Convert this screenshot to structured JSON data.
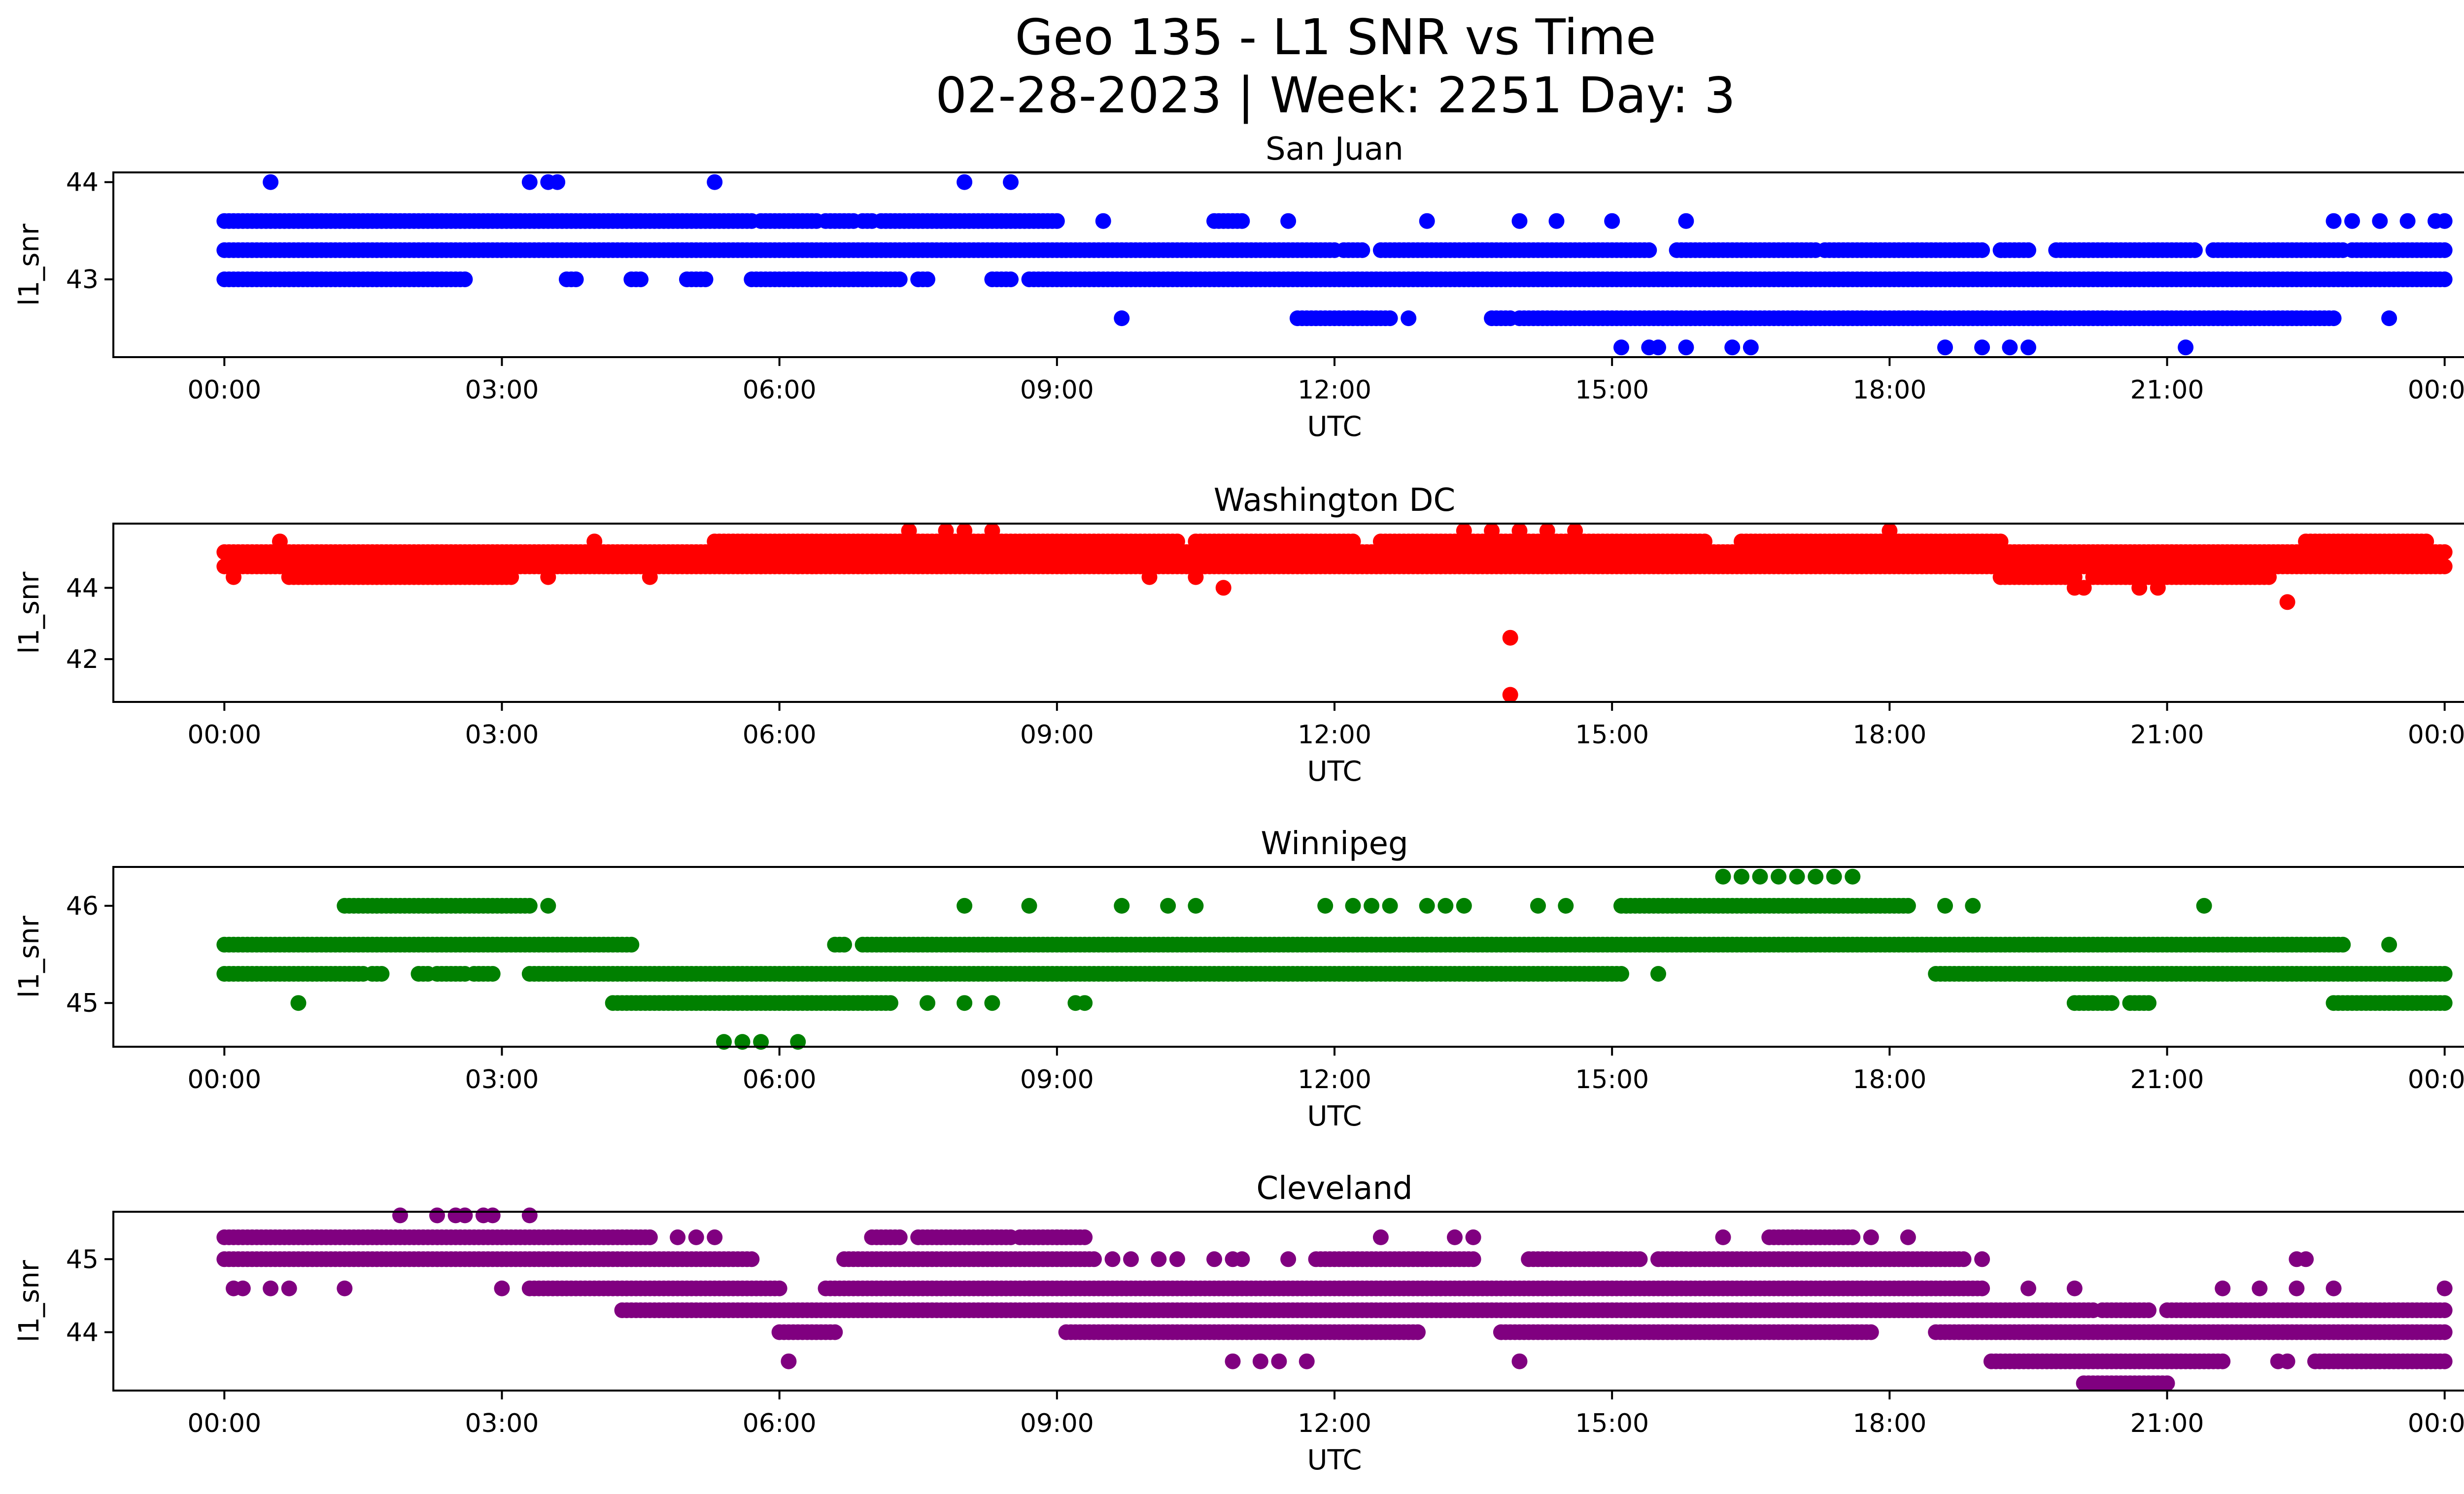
{
  "figure": {
    "title_line1": "Geo 135 - L1 SNR vs Time",
    "title_line2": "02-28-2023 | Week: 2251 Day: 3"
  },
  "chart_data": [
    {
      "type": "scatter",
      "title": "San Juan",
      "xlabel": "UTC",
      "ylabel": "l1_snr",
      "color": "#0000ff",
      "x_ticks": [
        "00:00",
        "03:00",
        "06:00",
        "09:00",
        "12:00",
        "15:00",
        "18:00",
        "21:00",
        "00:00"
      ],
      "xlim_hours": [
        -1.2,
        25.2
      ],
      "y_ticks": [
        43,
        44
      ],
      "ylim": [
        42.2,
        44.1
      ],
      "levels": [
        {
          "y": 43.0,
          "segments": [
            [
              0,
              2.6
            ],
            [
              3.7,
              3.8
            ],
            [
              4.4,
              4.5
            ],
            [
              5.0,
              5.2
            ],
            [
              5.7,
              7.3
            ],
            [
              7.5,
              7.6
            ],
            [
              8.3,
              8.5
            ],
            [
              8.7,
              24.0
            ]
          ]
        },
        {
          "y": 43.3,
          "segments": [
            [
              0,
              12.0
            ],
            [
              12.1,
              12.3
            ],
            [
              12.5,
              15.4
            ],
            [
              15.7,
              17.2
            ],
            [
              17.3,
              19.0
            ],
            [
              19.2,
              19.5
            ],
            [
              19.8,
              21.3
            ],
            [
              21.5,
              22.9
            ],
            [
              23.0,
              24.0
            ]
          ]
        },
        {
          "y": 43.6,
          "segments": [
            [
              0,
              5.7
            ],
            [
              5.8,
              6.4
            ],
            [
              6.5,
              6.8
            ],
            [
              6.9,
              7.0
            ],
            [
              7.1,
              9.0
            ],
            [
              10.7,
              11.0
            ]
          ]
        },
        {
          "y": 42.6,
          "segments": [
            [
              11.6,
              12.6
            ],
            [
              13.7,
              13.9
            ],
            [
              14.0,
              22.8
            ]
          ]
        }
      ],
      "points": [
        [
          0.5,
          44.0
        ],
        [
          3.3,
          44.0
        ],
        [
          3.5,
          44.0
        ],
        [
          3.6,
          44.0
        ],
        [
          5.3,
          44.0
        ],
        [
          8.0,
          44.0
        ],
        [
          8.5,
          44.0
        ],
        [
          9.5,
          43.6
        ],
        [
          11.5,
          43.6
        ],
        [
          13.0,
          43.6
        ],
        [
          14.0,
          43.6
        ],
        [
          14.4,
          43.6
        ],
        [
          15.0,
          43.6
        ],
        [
          15.8,
          43.6
        ],
        [
          22.8,
          43.6
        ],
        [
          23.0,
          43.6
        ],
        [
          23.3,
          43.6
        ],
        [
          23.6,
          43.6
        ],
        [
          23.9,
          43.6
        ],
        [
          24.0,
          43.6
        ],
        [
          9.7,
          42.6
        ],
        [
          12.8,
          42.6
        ],
        [
          23.4,
          42.6
        ],
        [
          15.1,
          42.3
        ],
        [
          15.4,
          42.3
        ],
        [
          15.5,
          42.3
        ],
        [
          15.8,
          42.3
        ],
        [
          16.3,
          42.3
        ],
        [
          16.5,
          42.3
        ],
        [
          18.6,
          42.3
        ],
        [
          19.0,
          42.3
        ],
        [
          19.3,
          42.3
        ],
        [
          19.5,
          42.3
        ],
        [
          21.2,
          42.3
        ],
        [
          22.0,
          43.3
        ]
      ]
    },
    {
      "type": "scatter",
      "title": "Washington DC",
      "xlabel": "UTC",
      "ylabel": "l1_snr",
      "color": "#ff0000",
      "x_ticks": [
        "00:00",
        "03:00",
        "06:00",
        "09:00",
        "12:00",
        "15:00",
        "18:00",
        "21:00",
        "00:00"
      ],
      "xlim_hours": [
        -1.2,
        25.2
      ],
      "y_ticks": [
        42,
        44
      ],
      "ylim": [
        40.8,
        45.8
      ],
      "levels": [
        {
          "y": 45.0,
          "segments": [
            [
              0,
              24.0
            ]
          ]
        },
        {
          "y": 44.6,
          "segments": [
            [
              0,
              24.0
            ]
          ]
        },
        {
          "y": 45.3,
          "segments": [
            [
              5.3,
              10.3
            ],
            [
              10.5,
              12.2
            ],
            [
              12.5,
              16.0
            ],
            [
              16.4,
              19.2
            ],
            [
              22.5,
              23.8
            ]
          ]
        },
        {
          "y": 44.3,
          "segments": [
            [
              0.7,
              3.1
            ],
            [
              19.2,
              20.0
            ],
            [
              20.2,
              22.1
            ]
          ]
        }
      ],
      "points": [
        [
          0.1,
          44.3
        ],
        [
          0.6,
          45.3
        ],
        [
          3.5,
          44.3
        ],
        [
          4.0,
          45.3
        ],
        [
          4.6,
          44.3
        ],
        [
          5.8,
          44.6
        ],
        [
          6.2,
          44.6
        ],
        [
          6.7,
          44.6
        ],
        [
          7.4,
          45.6
        ],
        [
          7.8,
          45.6
        ],
        [
          8.0,
          45.6
        ],
        [
          8.3,
          45.6
        ],
        [
          10.8,
          44.0
        ],
        [
          10.0,
          44.3
        ],
        [
          10.5,
          44.3
        ],
        [
          13.4,
          45.6
        ],
        [
          13.7,
          45.6
        ],
        [
          14.0,
          45.6
        ],
        [
          14.3,
          45.6
        ],
        [
          14.6,
          45.6
        ],
        [
          18.0,
          45.6
        ],
        [
          13.9,
          42.6
        ],
        [
          13.9,
          41.0
        ],
        [
          22.3,
          43.6
        ],
        [
          20.0,
          44.0
        ],
        [
          20.1,
          44.0
        ],
        [
          20.7,
          44.0
        ],
        [
          20.9,
          44.0
        ]
      ]
    },
    {
      "type": "scatter",
      "title": "Winnipeg",
      "xlabel": "UTC",
      "ylabel": "l1_snr",
      "color": "#008000",
      "x_ticks": [
        "00:00",
        "03:00",
        "06:00",
        "09:00",
        "12:00",
        "15:00",
        "18:00",
        "21:00",
        "00:00"
      ],
      "xlim_hours": [
        -1.2,
        25.2
      ],
      "y_ticks": [
        45,
        46
      ],
      "ylim": [
        44.55,
        46.4
      ],
      "levels": [
        {
          "y": 45.6,
          "segments": [
            [
              0,
              4.4
            ],
            [
              6.6,
              6.7
            ],
            [
              6.9,
              22.9
            ]
          ]
        },
        {
          "y": 45.3,
          "segments": [
            [
              0,
              1.5
            ],
            [
              1.6,
              1.7
            ],
            [
              2.1,
              2.2
            ],
            [
              2.3,
              2.6
            ],
            [
              2.7,
              2.9
            ],
            [
              3.3,
              15.1
            ],
            [
              18.5,
              24.0
            ]
          ]
        },
        {
          "y": 45.0,
          "segments": [
            [
              4.2,
              7.2
            ],
            [
              20.0,
              20.4
            ],
            [
              20.6,
              20.8
            ],
            [
              22.8,
              24.0
            ]
          ]
        },
        {
          "y": 46.0,
          "segments": [
            [
              1.3,
              3.3
            ],
            [
              15.1,
              18.2
            ]
          ]
        }
      ],
      "points": [
        [
          0.8,
          45.0
        ],
        [
          3.5,
          46.0
        ],
        [
          7.6,
          45.0
        ],
        [
          8.0,
          45.0
        ],
        [
          8.3,
          45.0
        ],
        [
          9.2,
          45.0
        ],
        [
          9.3,
          45.0
        ],
        [
          8.0,
          46.0
        ],
        [
          8.7,
          46.0
        ],
        [
          9.7,
          46.0
        ],
        [
          10.2,
          46.0
        ],
        [
          10.5,
          46.0
        ],
        [
          11.9,
          46.0
        ],
        [
          12.2,
          46.0
        ],
        [
          12.4,
          46.0
        ],
        [
          12.6,
          46.0
        ],
        [
          13.0,
          46.0
        ],
        [
          13.2,
          46.0
        ],
        [
          13.4,
          46.0
        ],
        [
          14.2,
          46.0
        ],
        [
          14.5,
          46.0
        ],
        [
          18.6,
          46.0
        ],
        [
          18.9,
          46.0
        ],
        [
          21.4,
          46.0
        ],
        [
          23.4,
          45.6
        ],
        [
          15.5,
          45.3
        ],
        [
          5.4,
          44.6
        ],
        [
          5.6,
          44.6
        ],
        [
          5.8,
          44.6
        ],
        [
          6.2,
          44.6
        ],
        [
          16.2,
          46.3
        ],
        [
          16.4,
          46.3
        ],
        [
          16.6,
          46.3
        ],
        [
          16.8,
          46.3
        ],
        [
          17.0,
          46.3
        ],
        [
          17.2,
          46.3
        ],
        [
          17.4,
          46.3
        ],
        [
          17.6,
          46.3
        ]
      ]
    },
    {
      "type": "scatter",
      "title": "Cleveland",
      "xlabel": "UTC",
      "ylabel": "l1_snr",
      "color": "#800080",
      "x_ticks": [
        "00:00",
        "03:00",
        "06:00",
        "09:00",
        "12:00",
        "15:00",
        "18:00",
        "21:00",
        "00:00"
      ],
      "xlim_hours": [
        -1.2,
        25.2
      ],
      "y_ticks": [
        44,
        45
      ],
      "ylim": [
        43.2,
        45.65
      ],
      "levels": [
        {
          "y": 45.3,
          "segments": [
            [
              0,
              4.6
            ],
            [
              7.0,
              7.3
            ],
            [
              7.5,
              8.5
            ],
            [
              8.6,
              9.3
            ],
            [
              16.7,
              17.6
            ]
          ]
        },
        {
          "y": 45.0,
          "segments": [
            [
              0,
              5.7
            ],
            [
              6.7,
              9.4
            ],
            [
              11.8,
              13.5
            ],
            [
              14.1,
              15.3
            ],
            [
              15.5,
              18.8
            ]
          ]
        },
        {
          "y": 44.6,
          "segments": [
            [
              3.3,
              6.0
            ],
            [
              6.5,
              19.0
            ]
          ]
        },
        {
          "y": 44.3,
          "segments": [
            [
              4.3,
              20.2
            ],
            [
              20.3,
              20.8
            ],
            [
              21.0,
              24.0
            ]
          ]
        },
        {
          "y": 44.0,
          "segments": [
            [
              6.0,
              6.6
            ],
            [
              9.1,
              12.9
            ],
            [
              13.8,
              17.8
            ],
            [
              18.5,
              24.0
            ]
          ]
        },
        {
          "y": 43.6,
          "segments": [
            [
              19.1,
              21.6
            ],
            [
              22.6,
              24.0
            ]
          ]
        },
        {
          "y": 43.3,
          "segments": [
            [
              20.1,
              21.0
            ]
          ]
        }
      ],
      "points": [
        [
          0.1,
          44.6
        ],
        [
          0.2,
          44.6
        ],
        [
          0.5,
          44.6
        ],
        [
          0.7,
          44.6
        ],
        [
          1.3,
          44.6
        ],
        [
          3.0,
          44.6
        ],
        [
          1.9,
          45.6
        ],
        [
          2.3,
          45.6
        ],
        [
          2.5,
          45.6
        ],
        [
          2.6,
          45.6
        ],
        [
          2.8,
          45.6
        ],
        [
          2.9,
          45.6
        ],
        [
          3.3,
          45.6
        ],
        [
          4.9,
          45.3
        ],
        [
          5.1,
          45.3
        ],
        [
          5.3,
          45.3
        ],
        [
          6.1,
          43.6
        ],
        [
          8.7,
          44.6
        ],
        [
          9.0,
          45.3
        ],
        [
          9.6,
          45.0
        ],
        [
          9.8,
          45.0
        ],
        [
          10.1,
          45.0
        ],
        [
          10.3,
          45.0
        ],
        [
          10.7,
          45.0
        ],
        [
          10.9,
          45.0
        ],
        [
          11.0,
          45.0
        ],
        [
          11.5,
          45.0
        ],
        [
          10.9,
          43.6
        ],
        [
          11.2,
          43.6
        ],
        [
          11.4,
          43.6
        ],
        [
          11.7,
          43.6
        ],
        [
          12.5,
          45.3
        ],
        [
          13.3,
          45.3
        ],
        [
          13.5,
          45.3
        ],
        [
          14.0,
          43.6
        ],
        [
          16.2,
          45.3
        ],
        [
          17.8,
          45.3
        ],
        [
          18.2,
          45.3
        ],
        [
          19.0,
          45.0
        ],
        [
          19.5,
          44.6
        ],
        [
          20.0,
          44.6
        ],
        [
          21.6,
          44.6
        ],
        [
          22.0,
          44.6
        ],
        [
          22.4,
          44.6
        ],
        [
          22.8,
          44.6
        ],
        [
          22.2,
          43.6
        ],
        [
          22.3,
          43.6
        ],
        [
          22.5,
          45.0
        ],
        [
          22.4,
          45.0
        ],
        [
          24.0,
          44.6
        ]
      ]
    }
  ]
}
